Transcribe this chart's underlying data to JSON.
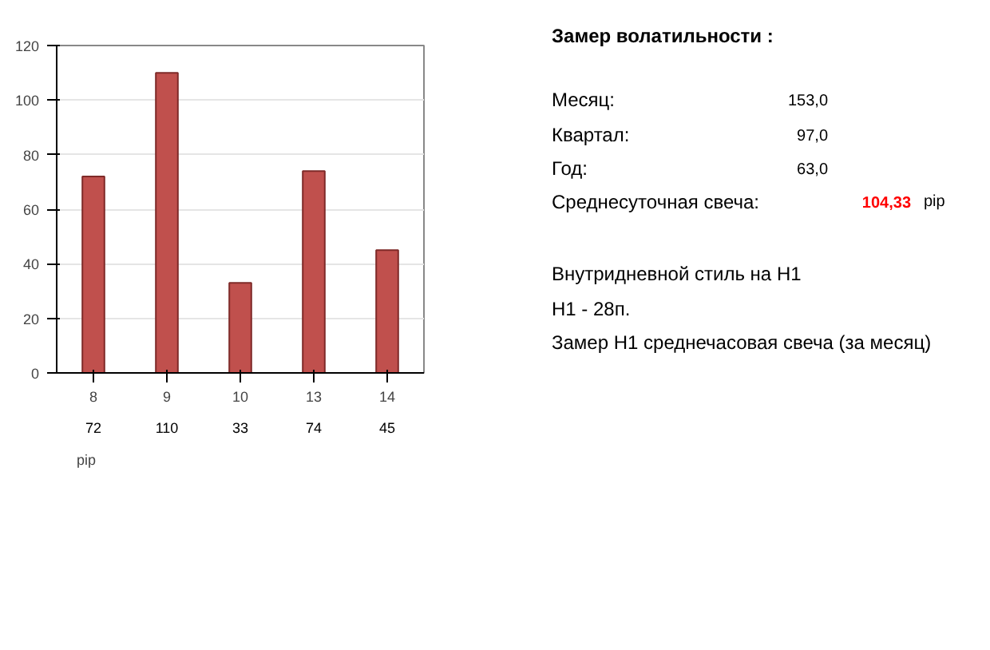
{
  "chart_data": {
    "type": "bar",
    "categories": [
      "8",
      "9",
      "10",
      "13",
      "14"
    ],
    "series": [
      {
        "name": "pip",
        "color": "#c0504d",
        "values": [
          72,
          110,
          33,
          74,
          45
        ]
      }
    ],
    "ylim": [
      0,
      120
    ],
    "yticks": [
      0,
      20,
      40,
      60,
      80,
      100,
      120
    ],
    "grid": "y",
    "legend": "bottom",
    "data_labels": true,
    "annotations": [
      "Замер  волатильности  :",
      "Месяц:",
      "153,0",
      "Квартал:",
      "97,0",
      "Год:",
      "63,0",
      "Среднесуточная свеча:",
      "104,33",
      "pip",
      "Внутридневной стиль на H1",
      "H1 - 28п.",
      "Замер H1 среднечасовая свеча (за месяц)"
    ]
  }
}
